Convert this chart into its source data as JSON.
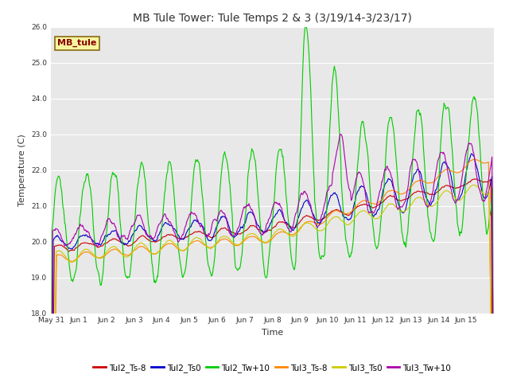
{
  "title": "MB Tule Tower: Tule Temps 2 & 3 (3/19/14-3/23/17)",
  "xlabel": "Time",
  "ylabel": "Temperature (C)",
  "ylim": [
    18.0,
    26.0
  ],
  "yticks": [
    18.0,
    19.0,
    20.0,
    21.0,
    22.0,
    23.0,
    24.0,
    25.0,
    26.0
  ],
  "bg_color": "#e8e8e8",
  "fig_color": "#ffffff",
  "annotation_text": "MB_tule",
  "annotation_color": "#8b0000",
  "annotation_bg": "#f5f5a0",
  "annotation_border": "#8b6914",
  "series_colors": {
    "Tul2_Ts-8": "#cc0000",
    "Tul2_Ts0": "#0000cc",
    "Tul2_Tw+10": "#00cc00",
    "Tul3_Ts-8": "#ff8800",
    "Tul3_Ts0": "#cccc00",
    "Tul3_Tw+10": "#aa00aa"
  },
  "legend_labels": [
    "Tul2_Ts-8",
    "Tul2_Ts0",
    "Tul2_Tw+10",
    "Tul3_Ts-8",
    "Tul3_Ts0",
    "Tul3_Tw+10"
  ],
  "xtick_labels": [
    "May 31",
    "Jun 1",
    "Jun 2",
    "Jun 3",
    "Jun 4",
    "Jun 5",
    "Jun 6",
    "Jun 7",
    "Jun 8",
    "Jun 9",
    "Jun 10",
    "Jun 11",
    "Jun 12",
    "Jun 13",
    "Jun 14",
    "Jun 15"
  ],
  "n_days": 16,
  "points_per_day": 48
}
